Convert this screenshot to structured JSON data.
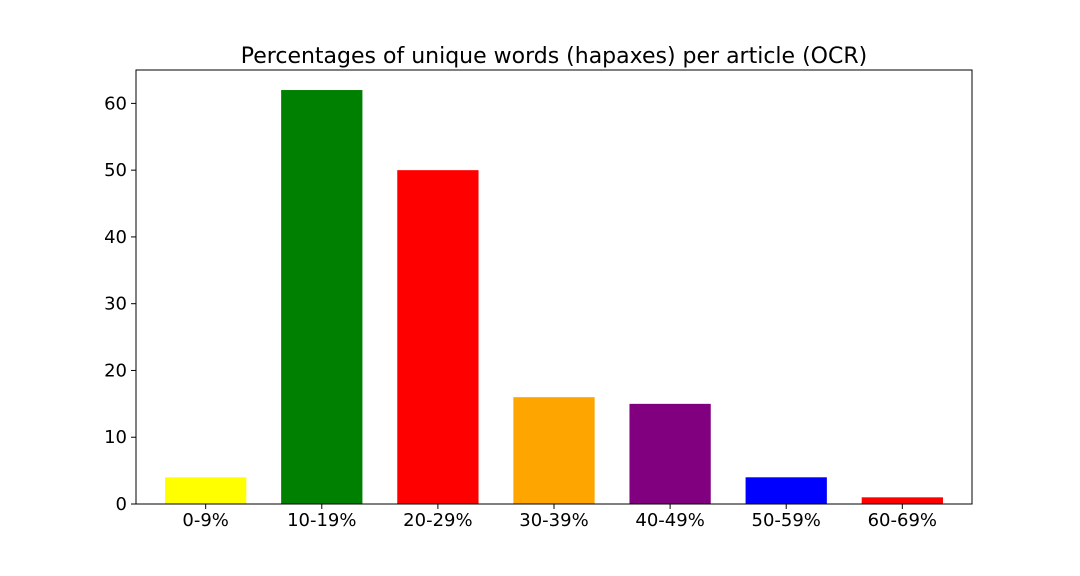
{
  "chart_data": {
    "type": "bar",
    "title": "Percentages of unique words (hapaxes) per article (OCR)",
    "xlabel": "",
    "ylabel": "",
    "categories": [
      "0-9%",
      "10-19%",
      "20-29%",
      "30-39%",
      "40-49%",
      "50-59%",
      "60-69%"
    ],
    "values": [
      4,
      62,
      50,
      16,
      15,
      4,
      1
    ],
    "colors": [
      "#ffff00",
      "#008000",
      "#ff0000",
      "#ffa500",
      "#800080",
      "#0000ff",
      "#ff0000"
    ],
    "ylim": [
      0,
      65
    ],
    "yticks": [
      0,
      10,
      20,
      30,
      40,
      50,
      60
    ],
    "grid": false,
    "legend": "none"
  }
}
